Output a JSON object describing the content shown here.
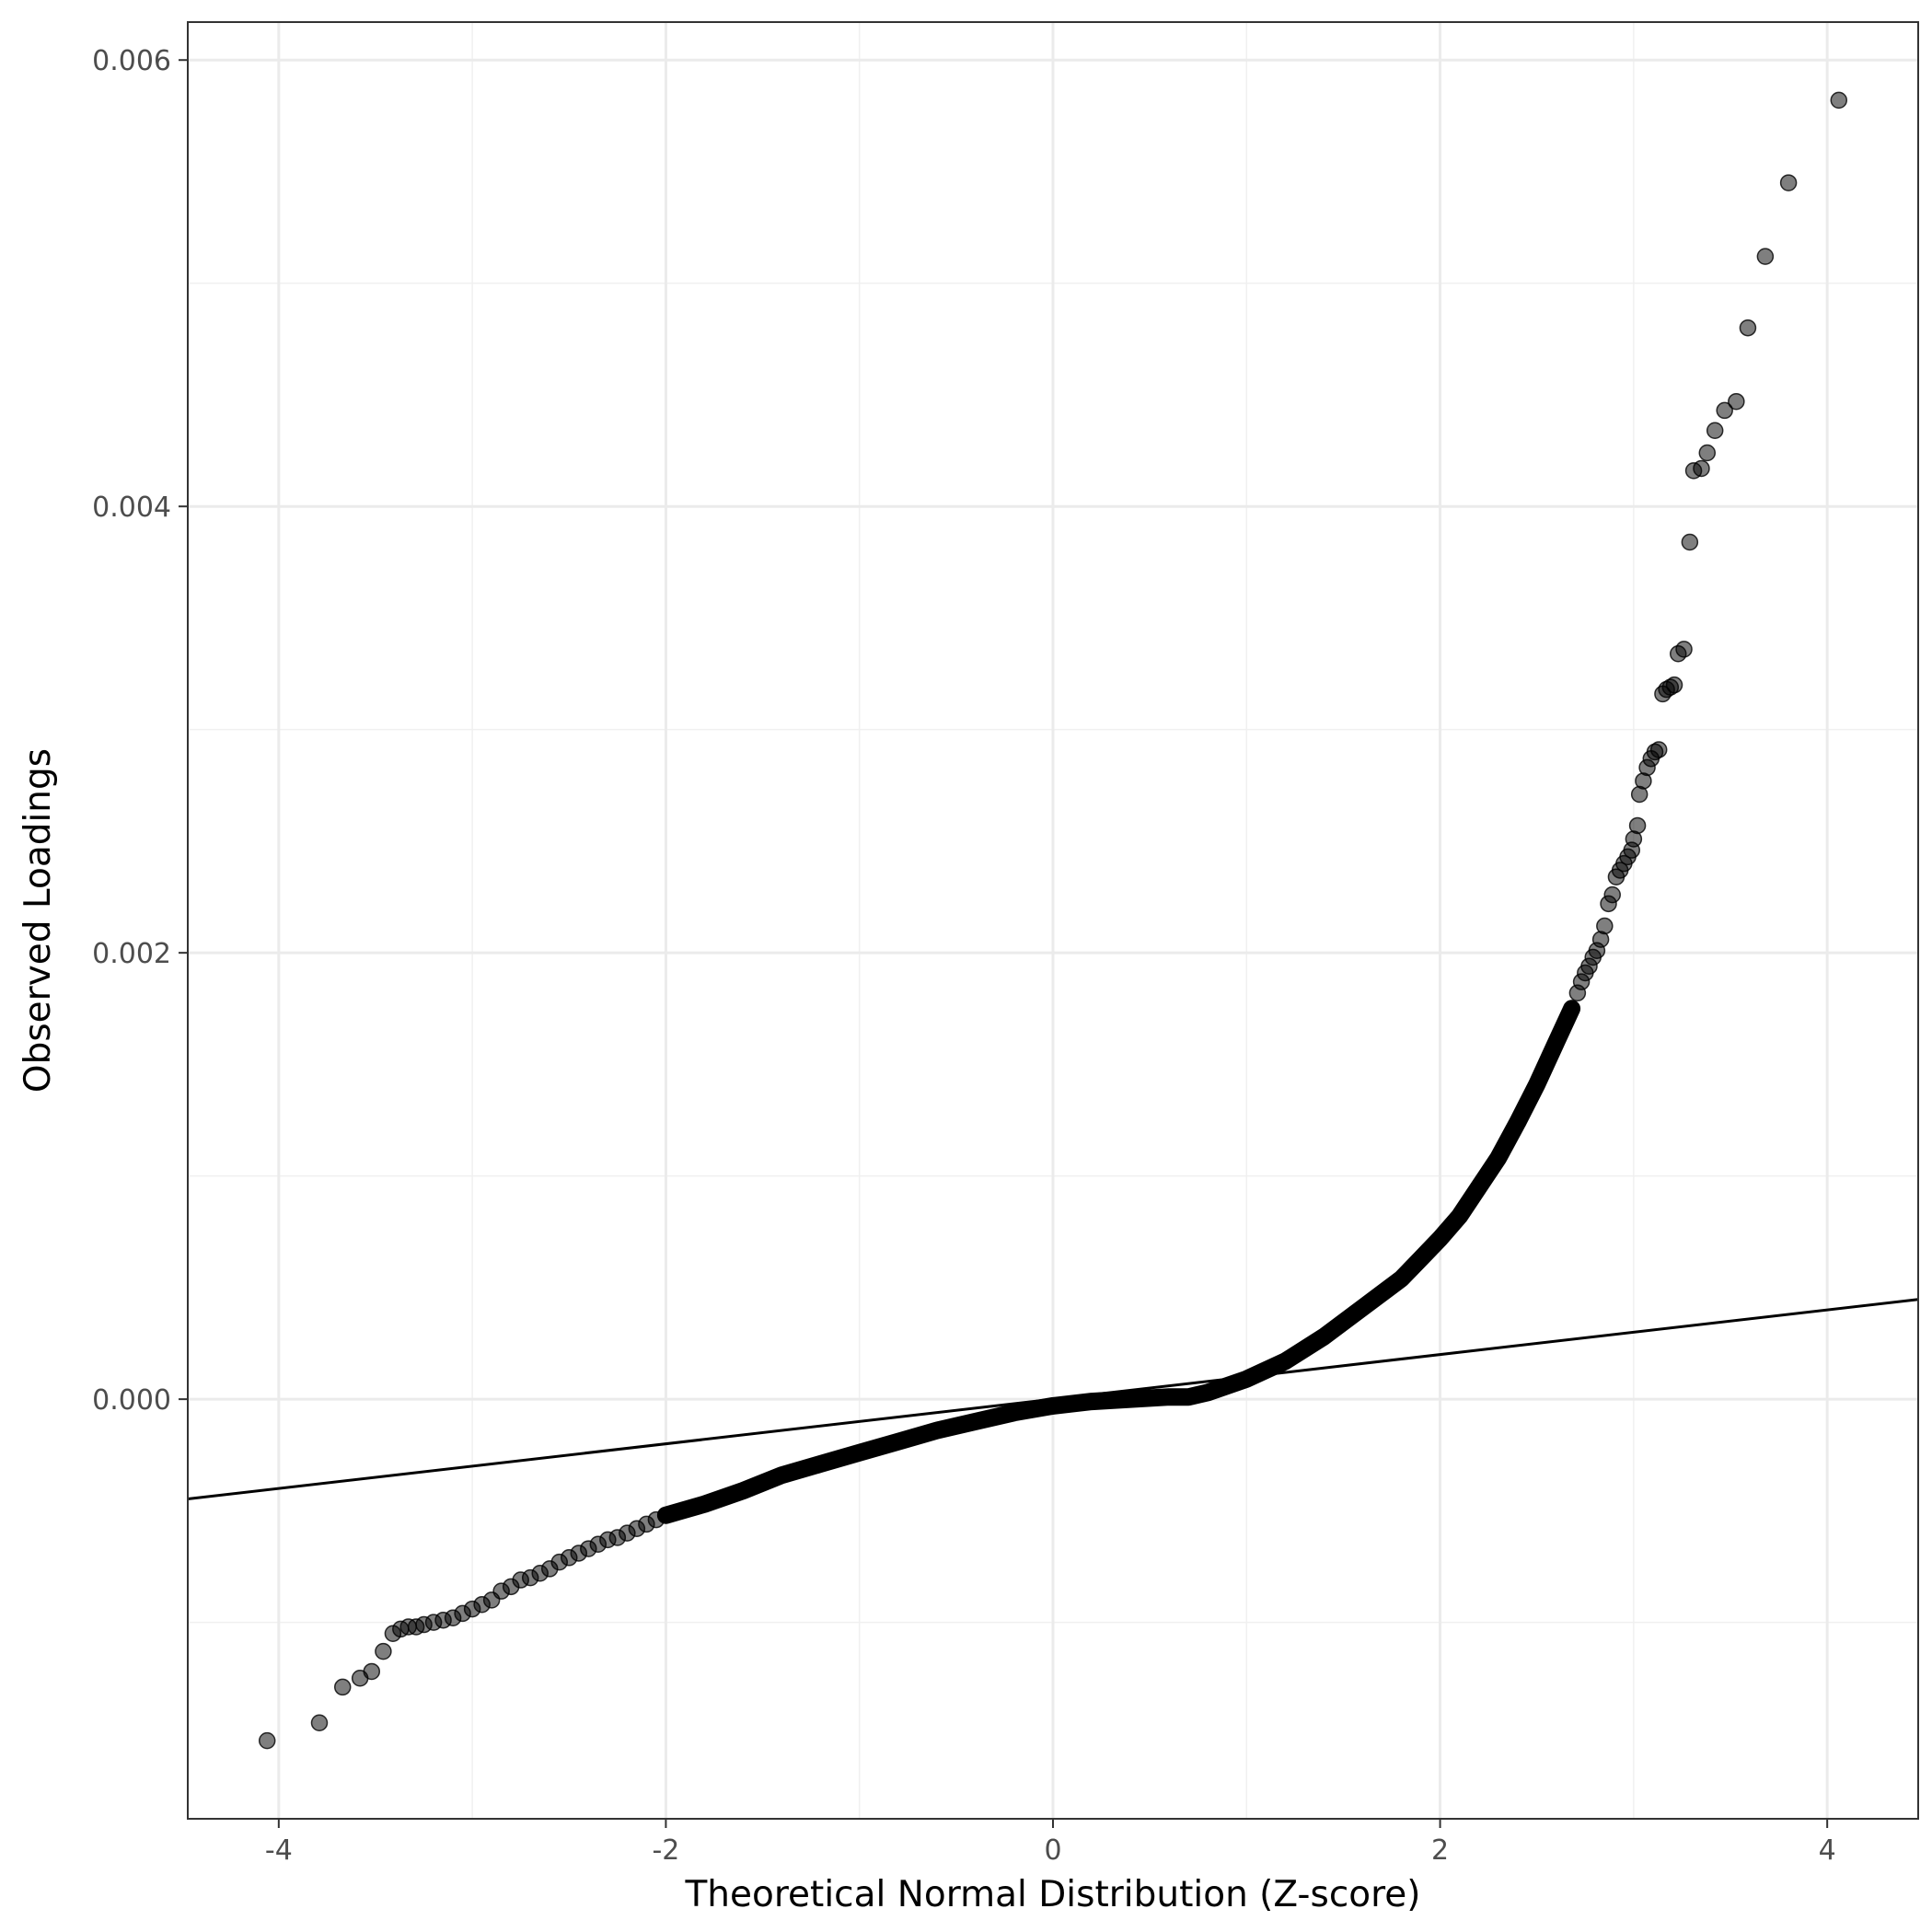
{
  "chart_data": {
    "type": "scatter",
    "title": "",
    "xlabel": "Theoretical Normal Distribution (Z-score)",
    "ylabel": "Observed Loadings",
    "xlim": [
      -4.47,
      4.47
    ],
    "ylim": [
      -0.00188,
      0.00617
    ],
    "x_ticks": [
      {
        "value": -4,
        "label": "-4"
      },
      {
        "value": -2,
        "label": "-2"
      },
      {
        "value": 0,
        "label": "0"
      },
      {
        "value": 2,
        "label": "2"
      },
      {
        "value": 4,
        "label": "4"
      }
    ],
    "y_ticks": [
      {
        "value": 0.0,
        "label": "0.000"
      },
      {
        "value": 0.002,
        "label": "0.002"
      },
      {
        "value": 0.004,
        "label": "0.004"
      },
      {
        "value": 0.006,
        "label": "0.006"
      }
    ],
    "grid": true,
    "legend": "none",
    "point_color": "#000000",
    "point_alpha": 0.5,
    "line_color": "#000000",
    "reference_line": {
      "intercept": 0.0,
      "slope": 0.0001
    },
    "series": [
      {
        "kind": "points",
        "points": [
          [
            -4.06,
            -0.00153
          ],
          [
            -3.79,
            -0.00145
          ],
          [
            -3.67,
            -0.00129
          ],
          [
            -3.58,
            -0.00125
          ],
          [
            -3.52,
            -0.00122
          ],
          [
            -3.46,
            -0.00113
          ],
          [
            -3.41,
            -0.00105
          ],
          [
            -3.37,
            -0.00103
          ],
          [
            -3.33,
            -0.00102
          ],
          [
            -3.29,
            -0.00102
          ],
          [
            -3.25,
            -0.00101
          ],
          [
            -3.2,
            -0.001
          ],
          [
            -3.15,
            -0.00099
          ],
          [
            -3.1,
            -0.00098
          ],
          [
            -3.05,
            -0.00096
          ],
          [
            -3.0,
            -0.00094
          ],
          [
            -2.95,
            -0.00092
          ],
          [
            -2.9,
            -0.0009
          ],
          [
            -2.85,
            -0.00086
          ],
          [
            -2.8,
            -0.00084
          ],
          [
            -2.75,
            -0.00081
          ],
          [
            -2.7,
            -0.0008
          ],
          [
            -2.65,
            -0.00078
          ],
          [
            -2.6,
            -0.00076
          ],
          [
            -2.55,
            -0.00073
          ],
          [
            -2.5,
            -0.00071
          ],
          [
            -2.45,
            -0.00069
          ],
          [
            -2.4,
            -0.00067
          ],
          [
            -2.35,
            -0.00065
          ],
          [
            -2.3,
            -0.00063
          ],
          [
            -2.25,
            -0.00062
          ],
          [
            -2.2,
            -0.0006
          ],
          [
            -2.15,
            -0.00058
          ],
          [
            -2.1,
            -0.00056
          ],
          [
            -2.05,
            -0.00054
          ],
          [
            -2.0,
            -0.00052
          ]
        ]
      },
      {
        "kind": "curve",
        "points": [
          [
            -2.0,
            -0.00052
          ],
          [
            -1.8,
            -0.00047
          ],
          [
            -1.6,
            -0.00041
          ],
          [
            -1.4,
            -0.00034
          ],
          [
            -1.2,
            -0.00029
          ],
          [
            -1.0,
            -0.00024
          ],
          [
            -0.8,
            -0.00019
          ],
          [
            -0.6,
            -0.00014
          ],
          [
            -0.4,
            -0.0001
          ],
          [
            -0.2,
            -6e-05
          ],
          [
            0.0,
            -3e-05
          ],
          [
            0.2,
            -1e-05
          ],
          [
            0.4,
            0.0
          ],
          [
            0.6,
            1e-05
          ],
          [
            0.7,
            1e-05
          ],
          [
            0.8,
            3e-05
          ],
          [
            1.0,
            9e-05
          ],
          [
            1.2,
            0.00017
          ],
          [
            1.4,
            0.00028
          ],
          [
            1.6,
            0.00041
          ],
          [
            1.8,
            0.00054
          ],
          [
            1.9,
            0.00063
          ],
          [
            2.0,
            0.00072
          ],
          [
            2.1,
            0.00082
          ],
          [
            2.2,
            0.00095
          ],
          [
            2.3,
            0.00108
          ],
          [
            2.4,
            0.00124
          ],
          [
            2.5,
            0.00141
          ],
          [
            2.6,
            0.0016
          ],
          [
            2.68,
            0.00175
          ]
        ]
      },
      {
        "kind": "points",
        "points": [
          [
            2.68,
            0.00175
          ],
          [
            2.71,
            0.00182
          ],
          [
            2.73,
            0.00187
          ],
          [
            2.75,
            0.00191
          ],
          [
            2.77,
            0.00194
          ],
          [
            2.79,
            0.00198
          ],
          [
            2.81,
            0.00201
          ],
          [
            2.83,
            0.00206
          ],
          [
            2.85,
            0.00212
          ],
          [
            2.87,
            0.00222
          ],
          [
            2.89,
            0.00226
          ],
          [
            2.91,
            0.00234
          ],
          [
            2.93,
            0.00237
          ],
          [
            2.95,
            0.0024
          ],
          [
            2.97,
            0.00243
          ],
          [
            2.99,
            0.00246
          ],
          [
            3.0,
            0.00251
          ],
          [
            3.02,
            0.00257
          ],
          [
            3.03,
            0.00271
          ],
          [
            3.05,
            0.00277
          ],
          [
            3.07,
            0.00283
          ],
          [
            3.09,
            0.00287
          ],
          [
            3.11,
            0.0029
          ],
          [
            3.13,
            0.00291
          ],
          [
            3.15,
            0.00316
          ],
          [
            3.17,
            0.00318
          ],
          [
            3.19,
            0.00319
          ],
          [
            3.21,
            0.0032
          ],
          [
            3.23,
            0.00334
          ],
          [
            3.26,
            0.00336
          ],
          [
            3.29,
            0.00384
          ],
          [
            3.31,
            0.00416
          ],
          [
            3.35,
            0.00417
          ],
          [
            3.38,
            0.00424
          ],
          [
            3.42,
            0.00434
          ],
          [
            3.47,
            0.00443
          ],
          [
            3.53,
            0.00447
          ],
          [
            3.59,
            0.0048
          ],
          [
            3.68,
            0.00512
          ],
          [
            3.8,
            0.00545
          ],
          [
            4.06,
            0.00582
          ]
        ]
      }
    ]
  }
}
